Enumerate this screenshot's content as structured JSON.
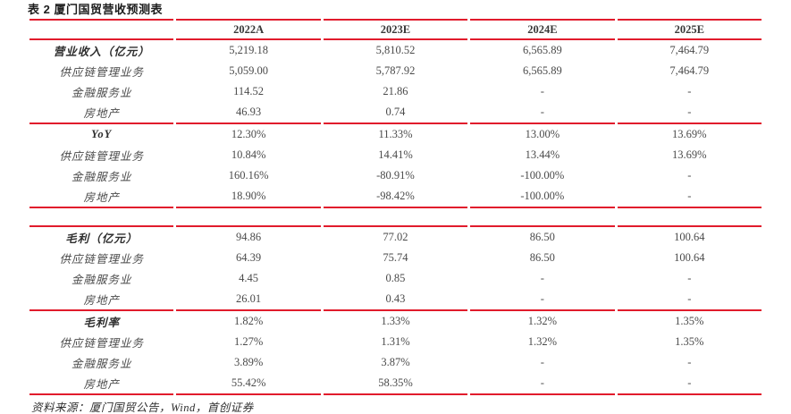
{
  "title": "表 2 厦门国贸营收预测表",
  "footer": {
    "source": "资料来源：厦门国贸公告，Wind，首创证券"
  },
  "colors": {
    "accent_red": "#e11b2c",
    "body_text": "#4a4a4a",
    "title_text": "#1d1d1d"
  },
  "chart_data": {
    "type": "table",
    "title": "表 2 厦门国贸营收预测表",
    "columns": [
      "",
      "2022A",
      "2023E",
      "2024E",
      "2025E"
    ],
    "sections": [
      {
        "rows": [
          {
            "label": "营业收入（亿元）",
            "bold": true,
            "values": [
              "5,219.18",
              "5,810.52",
              "6,565.89",
              "7,464.79"
            ]
          },
          {
            "label": "供应链管理业务",
            "bold": false,
            "values": [
              "5,059.00",
              "5,787.92",
              "6,565.89",
              "7,464.79"
            ]
          },
          {
            "label": "金融服务业",
            "bold": false,
            "values": [
              "114.52",
              "21.86",
              "-",
              "-"
            ]
          },
          {
            "label": "房地产",
            "bold": false,
            "values": [
              "46.93",
              "0.74",
              "-",
              "-"
            ]
          }
        ],
        "spacer_after": false
      },
      {
        "rows": [
          {
            "label": "YoY",
            "bold": true,
            "values": [
              "12.30%",
              "11.33%",
              "13.00%",
              "13.69%"
            ]
          },
          {
            "label": "供应链管理业务",
            "bold": false,
            "values": [
              "10.84%",
              "14.41%",
              "13.44%",
              "13.69%"
            ]
          },
          {
            "label": "金融服务业",
            "bold": false,
            "values": [
              "160.16%",
              "-80.91%",
              "-100.00%",
              "-"
            ]
          },
          {
            "label": "房地产",
            "bold": false,
            "values": [
              "18.90%",
              "-98.42%",
              "-100.00%",
              "-"
            ]
          }
        ],
        "spacer_after": true
      },
      {
        "rows": [
          {
            "label": "毛利（亿元）",
            "bold": true,
            "values": [
              "94.86",
              "77.02",
              "86.50",
              "100.64"
            ]
          },
          {
            "label": "供应链管理业务",
            "bold": false,
            "values": [
              "64.39",
              "75.74",
              "86.50",
              "100.64"
            ]
          },
          {
            "label": "金融服务业",
            "bold": false,
            "values": [
              "4.45",
              "0.85",
              "-",
              "-"
            ]
          },
          {
            "label": "房地产",
            "bold": false,
            "values": [
              "26.01",
              "0.43",
              "-",
              "-"
            ]
          }
        ],
        "spacer_after": false
      },
      {
        "rows": [
          {
            "label": "毛利率",
            "bold": true,
            "values": [
              "1.82%",
              "1.33%",
              "1.32%",
              "1.35%"
            ]
          },
          {
            "label": "供应链管理业务",
            "bold": false,
            "values": [
              "1.27%",
              "1.31%",
              "1.32%",
              "1.35%"
            ]
          },
          {
            "label": "金融服务业",
            "bold": false,
            "values": [
              "3.89%",
              "3.87%",
              "-",
              "-"
            ]
          },
          {
            "label": "房地产",
            "bold": false,
            "values": [
              "55.42%",
              "58.35%",
              "-",
              "-"
            ]
          }
        ],
        "spacer_after": false
      }
    ]
  }
}
